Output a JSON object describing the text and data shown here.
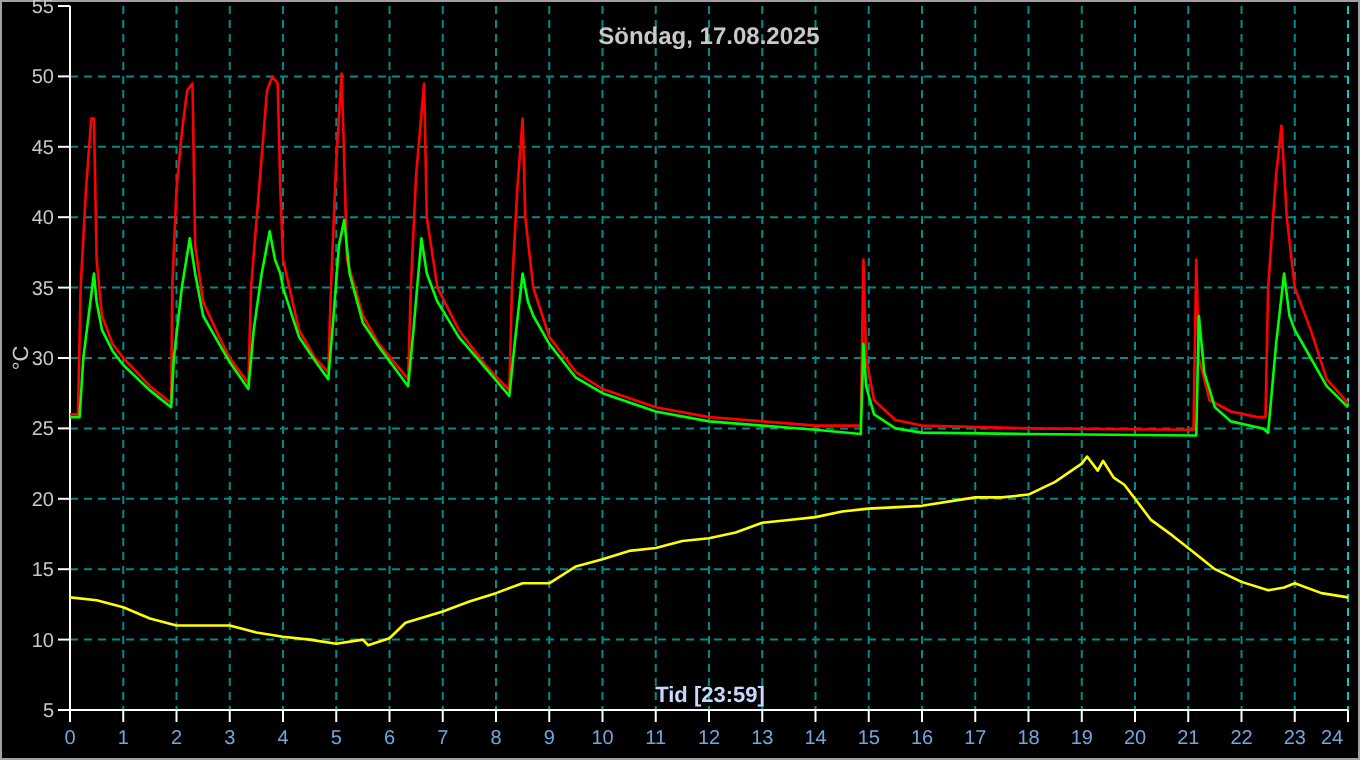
{
  "chart_data": {
    "type": "line",
    "title": "Söndag, 17.08.2025",
    "xlabel": "Tid [23:59]",
    "ylabel": "°C",
    "xlim": [
      0,
      24
    ],
    "ylim": [
      5,
      55
    ],
    "xticks": [
      0,
      1,
      2,
      3,
      4,
      5,
      6,
      7,
      8,
      9,
      10,
      11,
      12,
      13,
      14,
      15,
      16,
      17,
      18,
      19,
      20,
      21,
      22,
      23,
      24
    ],
    "yticks": [
      5,
      10,
      15,
      20,
      25,
      30,
      35,
      40,
      45,
      50,
      55
    ],
    "grid": true,
    "marker": "none",
    "line_style": "solid",
    "series": [
      {
        "color": "#ff0000",
        "x": [
          0,
          0.15,
          0.2,
          0.3,
          0.4,
          0.45,
          0.5,
          0.6,
          0.8,
          1.0,
          1.5,
          1.9,
          1.92,
          2.0,
          2.1,
          2.2,
          2.3,
          2.35,
          2.5,
          2.8,
          3.0,
          3.35,
          3.4,
          3.55,
          3.7,
          3.8,
          3.9,
          3.95,
          4.0,
          4.3,
          4.6,
          4.85,
          4.9,
          5.0,
          5.1,
          5.15,
          5.2,
          5.5,
          5.8,
          6.35,
          6.4,
          6.5,
          6.65,
          6.7,
          6.9,
          7.3,
          7.8,
          8.25,
          8.3,
          8.4,
          8.5,
          8.55,
          8.7,
          9.0,
          9.5,
          10,
          11,
          12,
          13,
          14,
          14.85,
          14.9,
          14.95,
          15.1,
          15.5,
          16,
          18,
          21.1,
          21.15,
          21.2,
          21.4,
          21.8,
          22.3,
          22.45,
          22.5,
          22.65,
          22.75,
          22.85,
          23.0,
          23.3,
          23.6,
          24
        ],
        "values": [
          26,
          26,
          35,
          42,
          47,
          47,
          37,
          33,
          31,
          30,
          28,
          26.8,
          35,
          42,
          46,
          49,
          49.5,
          38,
          34,
          31.5,
          30,
          28.2,
          35,
          42,
          49,
          50,
          49.5,
          42,
          37,
          32,
          30,
          29,
          35,
          44,
          50.2,
          44,
          37,
          33,
          31,
          28.5,
          35,
          43,
          49.5,
          40,
          35,
          32,
          29.5,
          27.7,
          35,
          42,
          47,
          40,
          35,
          31.5,
          29,
          27.8,
          26.5,
          25.8,
          25.5,
          25.2,
          25.2,
          37,
          30,
          27,
          25.6,
          25.2,
          25,
          24.9,
          37,
          30,
          27,
          26.2,
          25.8,
          25.8,
          35,
          43,
          46.5,
          40,
          35,
          32,
          28.5,
          26.8
        ]
      },
      {
        "color": "#00ff00",
        "x": [
          0,
          0.18,
          0.25,
          0.35,
          0.45,
          0.5,
          0.6,
          0.8,
          1.0,
          1.5,
          1.9,
          1.95,
          2.1,
          2.25,
          2.35,
          2.5,
          2.8,
          3.0,
          3.35,
          3.45,
          3.6,
          3.75,
          3.85,
          3.95,
          4.0,
          4.3,
          4.6,
          4.85,
          4.95,
          5.05,
          5.15,
          5.25,
          5.5,
          5.8,
          6.35,
          6.45,
          6.6,
          6.7,
          6.9,
          7.3,
          7.8,
          8.25,
          8.35,
          8.5,
          8.6,
          8.7,
          9.0,
          9.5,
          10,
          11,
          12,
          13,
          14,
          14.85,
          14.9,
          14.95,
          15.1,
          15.5,
          16,
          18,
          21.15,
          21.2,
          21.3,
          21.5,
          21.8,
          22.4,
          22.5,
          22.65,
          22.8,
          22.9,
          23.0,
          23.3,
          23.6,
          24
        ],
        "values": [
          25.8,
          25.8,
          30,
          33,
          36,
          34,
          32,
          30.5,
          29.5,
          27.7,
          26.5,
          30,
          35,
          38.5,
          36,
          33,
          31,
          29.7,
          27.8,
          32,
          36,
          39,
          37,
          36,
          35,
          31.5,
          29.8,
          28.5,
          33,
          38,
          39.8,
          36,
          32.5,
          30.8,
          28,
          32,
          38.5,
          36,
          34,
          31.5,
          29.3,
          27.3,
          31,
          36,
          34,
          33,
          31,
          28.6,
          27.5,
          26.2,
          25.5,
          25.2,
          24.9,
          24.6,
          31,
          28,
          26,
          25,
          24.7,
          24.6,
          24.5,
          33,
          29,
          26.5,
          25.5,
          25,
          24.7,
          31,
          36,
          33,
          32,
          30,
          28,
          26.5
        ]
      },
      {
        "color": "#ffff00",
        "x": [
          0,
          0.5,
          1,
          1.5,
          2,
          3,
          3.5,
          4,
          4.5,
          5,
          5.5,
          5.6,
          6,
          6.3,
          7,
          7.5,
          8,
          8.5,
          9,
          9.5,
          10,
          10.5,
          11,
          11.5,
          12,
          12.5,
          13,
          13.5,
          14,
          14.5,
          15,
          16,
          17,
          17.5,
          18,
          18.5,
          19,
          19.1,
          19.3,
          19.4,
          19.6,
          19.8,
          20,
          20.3,
          20.7,
          21,
          21.5,
          22,
          22.5,
          22.8,
          23,
          23.5,
          24
        ],
        "values": [
          13,
          12.8,
          12.3,
          11.5,
          11,
          11,
          10.5,
          10.2,
          10,
          9.7,
          10,
          9.6,
          10.1,
          11.2,
          12,
          12.7,
          13.3,
          14,
          14,
          15.2,
          15.7,
          16.3,
          16.5,
          17,
          17.2,
          17.6,
          18.3,
          18.5,
          18.7,
          19.1,
          19.3,
          19.5,
          20.1,
          20.1,
          20.3,
          21.2,
          22.5,
          23,
          22,
          22.7,
          21.5,
          21,
          20,
          18.5,
          17.4,
          16.5,
          15,
          14.1,
          13.5,
          13.7,
          14,
          13.3,
          13
        ]
      }
    ]
  }
}
